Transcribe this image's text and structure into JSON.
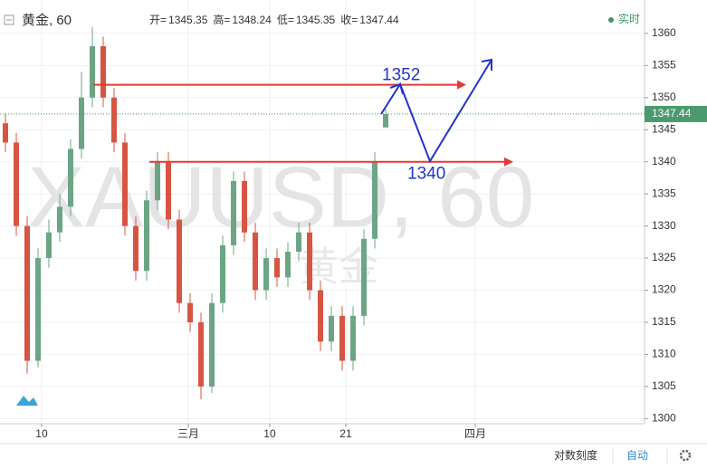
{
  "chart_data": {
    "type": "candlestick",
    "symbol": "黄金, 60",
    "watermark": "XAUUSD, 60",
    "watermark_sub": "黄金",
    "ohlc_labels": {
      "open": "开=",
      "high": "高=",
      "low": "低=",
      "close": "收="
    },
    "realtime": "实时",
    "log_scale_label": "对数刻度",
    "auto_label": "自动",
    "up_color": "#6ba583",
    "down_color": "#d75442",
    "candles": [
      {
        "open": 1346,
        "high": 1347.5,
        "low": 1341.5,
        "close": 1343
      },
      {
        "open": 1343,
        "high": 1344.5,
        "low": 1328.5,
        "close": 1330
      },
      {
        "open": 1330,
        "high": 1331.5,
        "low": 1307,
        "close": 1309
      },
      {
        "open": 1309,
        "high": 1326.5,
        "low": 1308,
        "close": 1325
      },
      {
        "open": 1325,
        "high": 1331,
        "low": 1323.5,
        "close": 1329
      },
      {
        "open": 1329,
        "high": 1335,
        "low": 1327.5,
        "close": 1333
      },
      {
        "open": 1333,
        "high": 1343.5,
        "low": 1331.5,
        "close": 1342
      },
      {
        "open": 1342,
        "high": 1354,
        "low": 1340.5,
        "close": 1350
      },
      {
        "open": 1350,
        "high": 1361,
        "low": 1348.5,
        "close": 1358
      },
      {
        "open": 1358,
        "high": 1359.5,
        "low": 1348.5,
        "close": 1350
      },
      {
        "open": 1350,
        "high": 1351.5,
        "low": 1341.5,
        "close": 1343
      },
      {
        "open": 1343,
        "high": 1344.5,
        "low": 1328.5,
        "close": 1330
      },
      {
        "open": 1330,
        "high": 1331.5,
        "low": 1321.5,
        "close": 1323
      },
      {
        "open": 1323,
        "high": 1335.5,
        "low": 1321.5,
        "close": 1334
      },
      {
        "open": 1334,
        "high": 1341.5,
        "low": 1332.5,
        "close": 1340
      },
      {
        "open": 1340,
        "high": 1341.5,
        "low": 1329.5,
        "close": 1331
      },
      {
        "open": 1331,
        "high": 1332.5,
        "low": 1316.5,
        "close": 1318
      },
      {
        "open": 1318,
        "high": 1319.5,
        "low": 1313.5,
        "close": 1315
      },
      {
        "open": 1315,
        "high": 1316.5,
        "low": 1303,
        "close": 1305
      },
      {
        "open": 1305,
        "high": 1319.5,
        "low": 1304,
        "close": 1318
      },
      {
        "open": 1318,
        "high": 1328.5,
        "low": 1316.5,
        "close": 1327
      },
      {
        "open": 1327,
        "high": 1338.5,
        "low": 1325.5,
        "close": 1337
      },
      {
        "open": 1337,
        "high": 1338.5,
        "low": 1327.5,
        "close": 1329
      },
      {
        "open": 1329,
        "high": 1330.5,
        "low": 1318.5,
        "close": 1320
      },
      {
        "open": 1320,
        "high": 1326.5,
        "low": 1318.5,
        "close": 1325
      },
      {
        "open": 1325,
        "high": 1326.5,
        "low": 1320.5,
        "close": 1322
      },
      {
        "open": 1322,
        "high": 1327.5,
        "low": 1320.5,
        "close": 1326
      },
      {
        "open": 1326,
        "high": 1330.5,
        "low": 1324.5,
        "close": 1329
      },
      {
        "open": 1329,
        "high": 1330.5,
        "low": 1318.5,
        "close": 1320
      },
      {
        "open": 1320,
        "high": 1321.5,
        "low": 1310.5,
        "close": 1312
      },
      {
        "open": 1312,
        "high": 1317.5,
        "low": 1310.5,
        "close": 1316
      },
      {
        "open": 1316,
        "high": 1317.5,
        "low": 1307.5,
        "close": 1309
      },
      {
        "open": 1309,
        "high": 1317.5,
        "low": 1307.5,
        "close": 1316
      },
      {
        "open": 1316,
        "high": 1329.5,
        "low": 1314.5,
        "close": 1328
      },
      {
        "open": 1328,
        "high": 1341.5,
        "low": 1326.5,
        "close": 1340
      },
      {
        "open": 1345.35,
        "high": 1348.24,
        "low": 1345.35,
        "close": 1347.44
      }
    ],
    "levels": [
      1352,
      1340
    ],
    "xlim": [
      0,
      59.33
    ],
    "xticks": [
      {
        "value": 3.83,
        "label": "10"
      },
      {
        "value": 17.33,
        "label": "三月"
      },
      {
        "value": 24.83,
        "label": "10"
      },
      {
        "value": 31.83,
        "label": "21"
      },
      {
        "value": 43.75,
        "label": "四月"
      }
    ],
    "ylim": [
      1299.2,
      1365.2
    ],
    "yticks": [
      1300,
      1305,
      1310,
      1315,
      1320,
      1325,
      1330,
      1335,
      1340,
      1345,
      1350,
      1355,
      1360
    ],
    "grid": true
  }
}
